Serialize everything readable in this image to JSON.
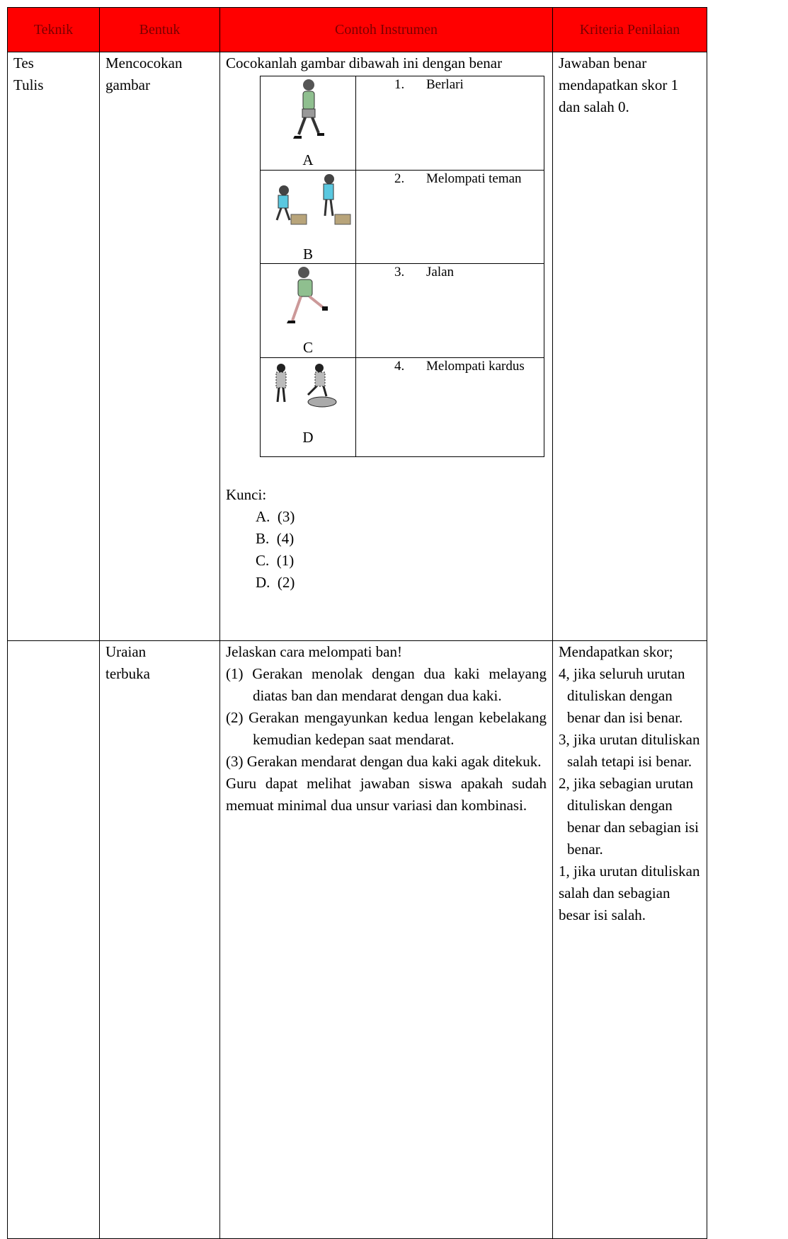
{
  "table": {
    "headers": [
      "Teknik",
      "Bentuk",
      "Contoh Instrumen",
      "Kriteria Penilaian"
    ],
    "rows": [
      {
        "teknik": "Tes Tulis",
        "bentuk": "Mencocokan gambar",
        "instruction": "Cocokanlah gambar dibawah ini dengan benar",
        "pictures": [
          "A",
          "B",
          "C",
          "D"
        ],
        "options": [
          {
            "number": "1.",
            "text": "Berlari"
          },
          {
            "number": "2.",
            "text": "Melompati teman"
          },
          {
            "number": "3.",
            "text": "Jalan"
          },
          {
            "number": "4.",
            "text": "Melompati kardus"
          }
        ],
        "key_label": "Kunci:",
        "key": [
          {
            "letter": "A.",
            "answer": "(3)"
          },
          {
            "letter": "B.",
            "answer": "(4)"
          },
          {
            "letter": "C.",
            "answer": "(1)"
          },
          {
            "letter": "D.",
            "answer": "(2)"
          }
        ],
        "criteria": "Jawaban benar mendapatkan skor 1 dan salah 0."
      },
      {
        "bentuk": "Uraian terbuka",
        "question": "Jelaskan cara melompati ban!",
        "steps": [
          {
            "number": "(1)",
            "text": "Gerakan menolak dengan dua kaki melayang diatas ban dan mendarat dengan dua kaki."
          },
          {
            "number": "(2)",
            "text": "Gerakan mengayunkan kedua lengan kebelakang kemudian kedepan saat mendarat."
          },
          {
            "number": "(3)",
            "text": "Gerakan mendarat dengan dua kaki agak ditekuk."
          }
        ],
        "note": "Guru dapat melihat jawaban siswa apakah sudah memuat minimal dua unsur variasi dan kombinasi.",
        "criteria_intro": "Mendapatkan skor;",
        "criteria": [
          "4, jika seluruh urutan dituliskan dengan benar dan isi benar.",
          "3, jika urutan dituliskan salah tetapi isi benar.",
          "2, jika sebagian urutan dituliskan dengan benar dan sebagian isi benar.",
          "1, jika urutan dituliskan salah dan sebagian besar isi salah."
        ]
      }
    ]
  }
}
